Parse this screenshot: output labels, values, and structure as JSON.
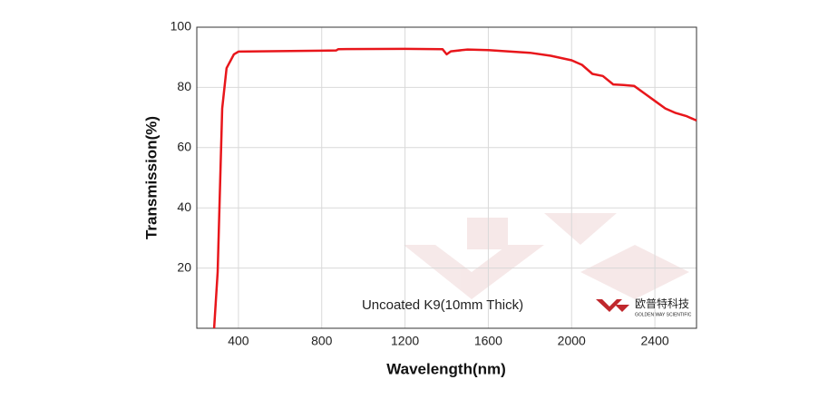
{
  "chart_data": {
    "type": "line",
    "x_label": "Wavelength(nm)",
    "y_label": "Transmission(%)",
    "annotation": "Uncoated K9(10mm Thick)",
    "logo": {
      "name": "欧普特科技",
      "subtitle": "GOLDEN WAY SCIENTIFIC"
    },
    "xlim": [
      200,
      2600
    ],
    "ylim": [
      0,
      100
    ],
    "xticks": [
      400,
      800,
      1200,
      1600,
      2000,
      2400
    ],
    "yticks": [
      20,
      40,
      60,
      80,
      100
    ],
    "grid": true,
    "series": [
      {
        "color": "#e8161b",
        "x": [
          283,
          300,
          322,
          343,
          378,
          400,
          500,
          800,
          870,
          880,
          1200,
          1380,
          1400,
          1420,
          1500,
          1600,
          1800,
          1900,
          2000,
          2050,
          2100,
          2150,
          2200,
          2250,
          2300,
          2350,
          2400,
          2450,
          2500,
          2550,
          2600
        ],
        "values": [
          0,
          18.7,
          73,
          86.4,
          91,
          91.9,
          92,
          92.2,
          92.3,
          92.7,
          92.8,
          92.7,
          91,
          92,
          92.6,
          92.4,
          91.5,
          90.5,
          89,
          87.5,
          84.5,
          83.8,
          81,
          80.8,
          80.5,
          78,
          75.5,
          73,
          71.5,
          70.5,
          69
        ]
      }
    ]
  }
}
